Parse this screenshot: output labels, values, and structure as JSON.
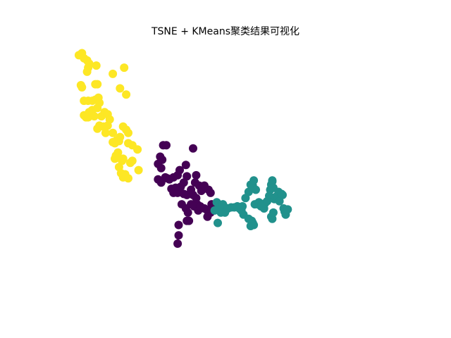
{
  "chart_data": {
    "type": "scatter",
    "title": "TSNE + KMeans聚类结果可视化",
    "xlabel": "",
    "ylabel": "",
    "axes_visible": false,
    "grid": false,
    "series": [
      {
        "cluster": 0,
        "color": "#440154",
        "points": [
          [
            -0.66,
            0.27
          ],
          [
            -0.63,
            0.27
          ],
          [
            -0.69,
            0.16
          ],
          [
            -0.67,
            0.13
          ],
          [
            -0.71,
            0.09
          ],
          [
            -0.68,
            0.05
          ],
          [
            -0.71,
            -0.06
          ],
          [
            -0.68,
            -0.09
          ],
          [
            -0.64,
            -0.04
          ],
          [
            -0.62,
            -0.05
          ],
          [
            -0.6,
            -0.06
          ],
          [
            -0.56,
            -0.04
          ],
          [
            -0.52,
            -0.02
          ],
          [
            -0.5,
            0.03
          ],
          [
            -0.44,
            0.08
          ],
          [
            -0.43,
            -0.03
          ],
          [
            -0.46,
            -0.09
          ],
          [
            -0.37,
            0.24
          ],
          [
            -0.34,
            -0.02
          ],
          [
            -0.35,
            -0.09
          ],
          [
            -0.31,
            -0.12
          ],
          [
            -0.29,
            -0.17
          ],
          [
            -0.26,
            -0.12
          ],
          [
            -0.22,
            -0.16
          ],
          [
            -0.2,
            -0.19
          ],
          [
            -0.58,
            -0.15
          ],
          [
            -0.56,
            -0.19
          ],
          [
            -0.54,
            -0.14
          ],
          [
            -0.52,
            -0.19
          ],
          [
            -0.49,
            -0.13
          ],
          [
            -0.46,
            -0.2
          ],
          [
            -0.43,
            -0.21
          ],
          [
            -0.39,
            -0.16
          ],
          [
            -0.37,
            -0.21
          ],
          [
            -0.34,
            -0.24
          ],
          [
            -0.33,
            -0.3
          ],
          [
            -0.48,
            -0.3
          ],
          [
            -0.44,
            -0.34
          ],
          [
            -0.42,
            -0.38
          ],
          [
            -0.39,
            -0.3
          ],
          [
            -0.36,
            -0.32
          ],
          [
            -0.32,
            -0.36
          ],
          [
            -0.3,
            -0.32
          ],
          [
            -0.26,
            -0.34
          ],
          [
            -0.23,
            -0.36
          ],
          [
            -0.2,
            -0.38
          ],
          [
            -0.23,
            -0.42
          ],
          [
            -0.19,
            -0.3
          ],
          [
            -0.16,
            -0.3
          ],
          [
            -0.43,
            -0.46
          ],
          [
            -0.41,
            -0.46
          ],
          [
            -0.51,
            -0.5
          ],
          [
            -0.51,
            -0.6
          ],
          [
            -0.52,
            -0.68
          ]
        ]
      },
      {
        "cluster": 1,
        "color": "#21918c",
        "points": [
          [
            -0.14,
            -0.28
          ],
          [
            -0.12,
            -0.3
          ],
          [
            -0.1,
            -0.32
          ],
          [
            -0.08,
            -0.3
          ],
          [
            -0.06,
            -0.33
          ],
          [
            -0.03,
            -0.34
          ],
          [
            0.0,
            -0.33
          ],
          [
            0.03,
            -0.33
          ],
          [
            0.06,
            -0.32
          ],
          [
            0.08,
            -0.34
          ],
          [
            0.1,
            -0.36
          ],
          [
            0.11,
            -0.32
          ],
          [
            0.12,
            -0.4
          ],
          [
            0.14,
            -0.24
          ],
          [
            0.17,
            -0.18
          ],
          [
            0.19,
            -0.11
          ],
          [
            0.21,
            -0.12
          ],
          [
            0.22,
            -0.07
          ],
          [
            0.24,
            -0.16
          ],
          [
            0.23,
            -0.3
          ],
          [
            0.26,
            -0.3
          ],
          [
            0.27,
            -0.28
          ],
          [
            0.29,
            -0.32
          ],
          [
            0.3,
            -0.3
          ],
          [
            0.32,
            -0.34
          ],
          [
            0.33,
            -0.29
          ],
          [
            0.35,
            -0.27
          ],
          [
            0.37,
            -0.22
          ],
          [
            0.38,
            -0.16
          ],
          [
            0.39,
            -0.11
          ],
          [
            0.4,
            -0.08
          ],
          [
            0.42,
            -0.25
          ],
          [
            0.43,
            -0.23
          ],
          [
            0.45,
            -0.22
          ],
          [
            0.46,
            -0.18
          ],
          [
            0.47,
            -0.27
          ],
          [
            0.49,
            -0.2
          ],
          [
            0.5,
            -0.21
          ],
          [
            0.51,
            -0.34
          ],
          [
            0.52,
            -0.37
          ],
          [
            0.53,
            -0.4
          ],
          [
            0.55,
            -0.35
          ],
          [
            0.4,
            -0.07
          ],
          [
            0.41,
            -0.14
          ],
          [
            0.2,
            -0.46
          ],
          [
            0.21,
            -0.48
          ],
          [
            0.22,
            -0.5
          ],
          [
            0.19,
            -0.51
          ],
          [
            0.17,
            -0.44
          ],
          [
            0.39,
            -0.42
          ],
          [
            0.4,
            -0.44
          ],
          [
            0.41,
            -0.38
          ],
          [
            -0.1,
            -0.38
          ],
          [
            -0.13,
            -0.48
          ],
          [
            -0.16,
            -0.36
          ],
          [
            -0.06,
            -0.38
          ]
        ]
      },
      {
        "cluster": 2,
        "color": "#fde725",
        "points": [
          [
            -1.48,
            1.14
          ],
          [
            -1.45,
            1.16
          ],
          [
            -1.43,
            1.11
          ],
          [
            -1.4,
            1.09
          ],
          [
            -1.38,
            1.06
          ],
          [
            -1.39,
            1.02
          ],
          [
            -1.4,
            0.98
          ],
          [
            -1.32,
            0.86
          ],
          [
            -1.3,
            0.86
          ],
          [
            -1.45,
            0.83
          ],
          [
            -1.46,
            0.85
          ],
          [
            -1.31,
            1.04
          ],
          [
            -1.15,
            0.96
          ],
          [
            -1.04,
            1.02
          ],
          [
            -1.08,
            0.82
          ],
          [
            -1.02,
            0.76
          ],
          [
            -1.43,
            0.7
          ],
          [
            -1.39,
            0.7
          ],
          [
            -1.35,
            0.7
          ],
          [
            -1.32,
            0.71
          ],
          [
            -1.29,
            0.73
          ],
          [
            -1.28,
            0.68
          ],
          [
            -1.3,
            0.63
          ],
          [
            -1.35,
            0.61
          ],
          [
            -1.38,
            0.59
          ],
          [
            -1.41,
            0.54
          ],
          [
            -1.43,
            0.56
          ],
          [
            -1.39,
            0.54
          ],
          [
            -1.36,
            0.56
          ],
          [
            -1.33,
            0.55
          ],
          [
            -1.26,
            0.55
          ],
          [
            -1.23,
            0.59
          ],
          [
            -1.2,
            0.57
          ],
          [
            -1.18,
            0.52
          ],
          [
            -1.28,
            0.46
          ],
          [
            -1.3,
            0.43
          ],
          [
            -1.24,
            0.45
          ],
          [
            -1.22,
            0.39
          ],
          [
            -1.15,
            0.39
          ],
          [
            -1.2,
            0.46
          ],
          [
            -1.05,
            0.45
          ],
          [
            -1.02,
            0.42
          ],
          [
            -1.0,
            0.39
          ],
          [
            -1.08,
            0.35
          ],
          [
            -1.11,
            0.32
          ],
          [
            -1.13,
            0.29
          ],
          [
            -1.15,
            0.3
          ],
          [
            -1.09,
            0.31
          ],
          [
            -1.0,
            0.29
          ],
          [
            -0.96,
            0.27
          ],
          [
            -0.91,
            0.23
          ],
          [
            -1.1,
            0.2
          ],
          [
            -1.12,
            0.17
          ],
          [
            -1.13,
            0.14
          ],
          [
            -1.06,
            0.12
          ],
          [
            -1.05,
            0.14
          ],
          [
            -1.09,
            0.06
          ],
          [
            -1.07,
            0.0
          ],
          [
            -1.05,
            -0.04
          ],
          [
            -1.03,
            -0.01
          ],
          [
            -1.0,
            -0.05
          ],
          [
            -0.98,
            0.1
          ],
          [
            -0.96,
            0.12
          ],
          [
            -0.9,
            0.03
          ]
        ]
      }
    ]
  }
}
